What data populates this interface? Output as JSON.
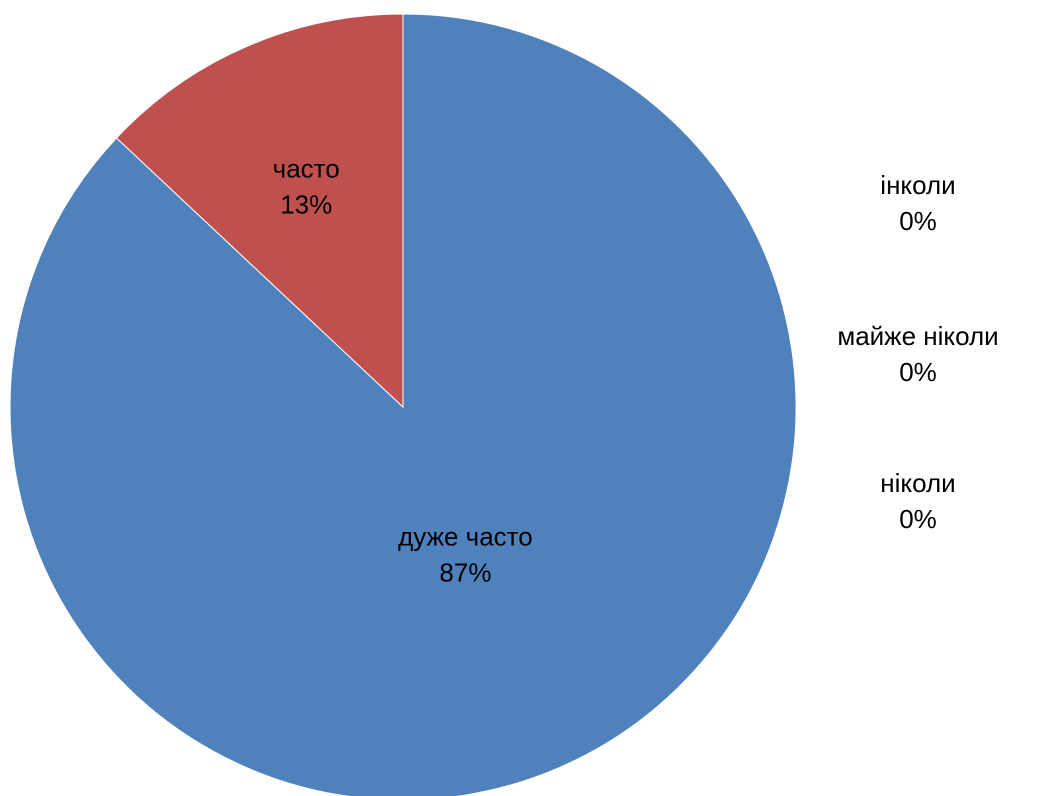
{
  "chart_data": {
    "type": "pie",
    "title": "",
    "categories": [
      "дуже часто",
      "часто",
      "інколи",
      "майже ніколи",
      "ніколи"
    ],
    "values": [
      87,
      13,
      0,
      0,
      0
    ],
    "data_labels": [
      "87%",
      "13%",
      "0%",
      "0%",
      "0%"
    ],
    "colors": [
      "#4F81BD",
      "#C0504D",
      "#9BBB59",
      "#8064A2",
      "#4BACC6"
    ],
    "start_angle_deg": 0,
    "direction": "clockwise",
    "legend": "none"
  }
}
